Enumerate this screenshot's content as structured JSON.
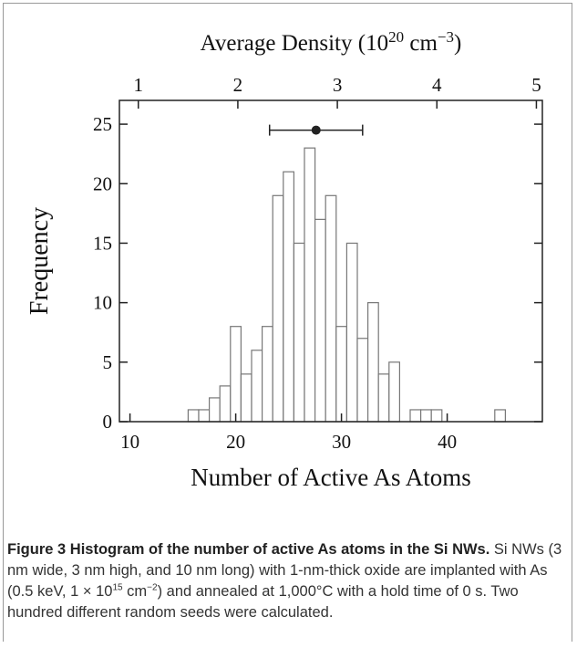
{
  "chart_data": {
    "type": "histogram",
    "x2label": [
      "Average Density (10",
      "20",
      " cm",
      "−3",
      ")"
    ],
    "xlabel": "Number of Active As Atoms",
    "ylabel": "Frequency",
    "bins": [
      15.5,
      16.5,
      17.5,
      18.5,
      19.5,
      20.5,
      21.5,
      22.5,
      23.5,
      24.5,
      25.5,
      26.5,
      27.5,
      28.5,
      29.5,
      30.5,
      31.5,
      32.5,
      33.5,
      34.5,
      35.5,
      36.5,
      37.5,
      38.5,
      39.5,
      40.5,
      41.5,
      42.5,
      43.5,
      44.5,
      45.5
    ],
    "values": [
      1,
      1,
      2,
      3,
      8,
      4,
      6,
      8,
      19,
      21,
      15,
      23,
      17,
      19,
      8,
      15,
      7,
      10,
      4,
      5,
      0,
      1,
      1,
      1,
      0,
      0,
      0,
      0,
      0,
      1
    ],
    "color": "#ffffff",
    "edgecolor": "#777777",
    "mean": {
      "x": 27.6,
      "xerr": 4.4,
      "y": 24.5
    },
    "xlim": [
      9,
      49
    ],
    "xticks": [
      10,
      20,
      30,
      40
    ],
    "x2lim": [
      0.81,
      5.06
    ],
    "x2ticks": [
      1,
      2,
      3,
      4,
      5
    ],
    "ylim": [
      0,
      27
    ],
    "yticks": [
      0,
      5,
      10,
      15,
      20,
      25
    ]
  },
  "caption": {
    "label": "Figure 3",
    "title": "Histogram of the number of active As atoms in the Si NWs.",
    "body": [
      "Si NWs (3 nm wide, 3 nm high, and 10 nm long) with 1-nm-thick oxide are implanted with As (0.5 keV, 1 × 10",
      "15",
      " cm",
      "−2",
      ") and annealed at 1,000°C with a hold time of 0 s. Two hundred different random seeds were calculated."
    ]
  }
}
